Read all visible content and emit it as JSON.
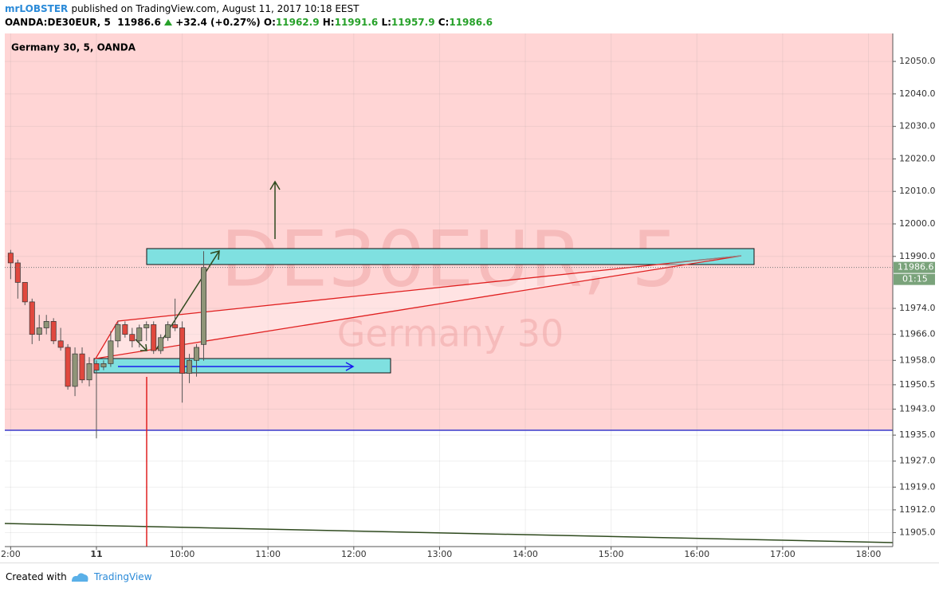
{
  "header": {
    "author": "mrLOBSTER",
    "published": "published on TradingView.com, August 11, 2017 10:18 EEST",
    "symbol": "OANDA:DE30EUR, 5",
    "change": "+32.4 (+0.27%)",
    "o_label": "O:",
    "h_label": "H:",
    "l_label": "L:",
    "c_label": "C:"
  },
  "footer": {
    "created_with": "Created with",
    "brand": "TradingView"
  },
  "chart_data": {
    "type": "candlestick",
    "title": "Germany 30, 5, OANDA",
    "watermark": [
      "DE30EUR, 5",
      "Germany 30"
    ],
    "countdown": "01:15",
    "x": [
      480,
      485,
      490,
      495,
      500,
      505,
      510,
      515,
      520,
      525,
      530,
      535,
      540,
      545,
      550,
      555,
      560,
      565,
      570,
      575,
      580,
      585,
      590,
      595,
      600,
      605,
      610,
      615
    ],
    "open": [
      11991,
      11988,
      11982,
      11976,
      11966,
      11968,
      11970,
      11964,
      11962,
      11950,
      11960,
      11952,
      11957,
      11956,
      11957,
      11964,
      11969,
      11966,
      11964,
      11968,
      11969,
      11961,
      11965,
      11969,
      11968,
      11954,
      11958,
      11962.9
    ],
    "high": [
      11992,
      11989,
      11982,
      11977,
      11972,
      11972,
      11971,
      11968,
      11963,
      11962,
      11962,
      11959,
      11958,
      11958,
      11967,
      11970,
      11970,
      11968,
      11969,
      11970,
      11970,
      11966,
      11970,
      11977,
      11970,
      11960,
      11963,
      11991.6
    ],
    "low": [
      11983,
      11977,
      11975,
      11963,
      11964,
      11966,
      11963,
      11961,
      11949,
      11947,
      11951,
      11950,
      11934,
      11955,
      11956,
      11962,
      11965,
      11962,
      11962,
      11964,
      11960,
      11960,
      11964,
      11967,
      11945,
      11951,
      11953,
      11957.9
    ],
    "close": [
      11988,
      11982,
      11976,
      11966,
      11968,
      11970,
      11964,
      11962,
      11950,
      11960,
      11952,
      11957,
      11955,
      11957,
      11964,
      11969,
      11966,
      11964,
      11968,
      11969,
      11961,
      11965,
      11969,
      11968,
      11954,
      11958,
      11962,
      11986.6
    ],
    "up_color": "#8f9578",
    "down_color": "#e0483e",
    "xlim": [
      475.9,
      1097
    ],
    "xticks": [
      {
        "value": 480,
        "label": "2:00"
      },
      {
        "value": 540,
        "label": "11"
      },
      {
        "value": 600,
        "label": "10:00"
      },
      {
        "value": 660,
        "label": "11:00"
      },
      {
        "value": 720,
        "label": "12:00"
      },
      {
        "value": 780,
        "label": "13:00"
      },
      {
        "value": 840,
        "label": "14:00"
      },
      {
        "value": 900,
        "label": "15:00"
      },
      {
        "value": 960,
        "label": "16:00"
      },
      {
        "value": 1020,
        "label": "17:00"
      },
      {
        "value": 1080,
        "label": "18:00"
      }
    ],
    "ylim": [
      11900.7,
      12058.6
    ],
    "yticks": [
      {
        "value": 11905,
        "label": "11905.0"
      },
      {
        "value": 11912,
        "label": "11912.0"
      },
      {
        "value": 11919,
        "label": "11919.0"
      },
      {
        "value": 11927,
        "label": "11927.0"
      },
      {
        "value": 11935,
        "label": "11935.0"
      },
      {
        "value": 11943,
        "label": "11943.0"
      },
      11950.5,
      {
        "value": 11958,
        "label": "11958.0"
      },
      {
        "value": 11966,
        "label": "11966.0"
      },
      {
        "value": 11974,
        "label": "11974.0"
      },
      {
        "value": 11990,
        "label": "11990.0"
      },
      {
        "value": 12000,
        "label": "12000.0"
      },
      {
        "value": 12010,
        "label": "12010.0"
      },
      {
        "value": 12020,
        "label": "12020.0"
      },
      {
        "value": 12030,
        "label": "12030.0"
      },
      {
        "value": 12040,
        "label": "12040.0"
      },
      {
        "value": 12050,
        "label": "12050.0"
      }
    ],
    "grid": true
  }
}
